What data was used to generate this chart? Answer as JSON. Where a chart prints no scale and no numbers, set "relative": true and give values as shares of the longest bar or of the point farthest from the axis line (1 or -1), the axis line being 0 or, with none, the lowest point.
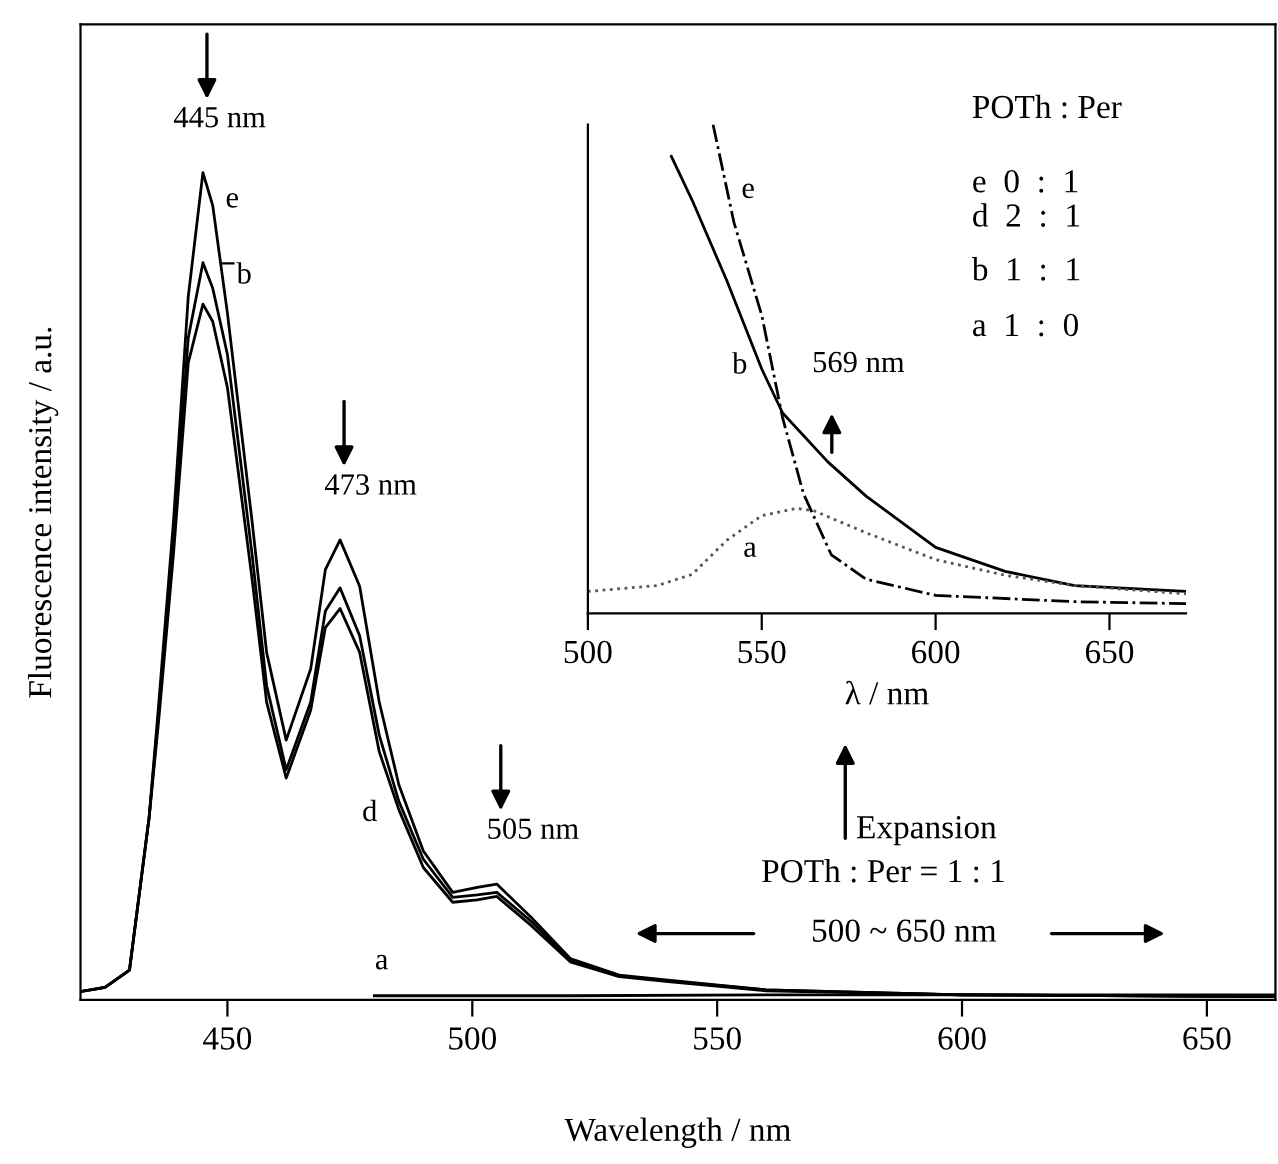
{
  "chart_data": [
    {
      "type": "line",
      "xlabel": "Wavelength / nm",
      "ylabel": "Fluorescence intensity / a.u.",
      "xlim": [
        420,
        664
      ],
      "xticks": [
        450,
        500,
        550,
        600,
        650
      ],
      "tick_labels": "x",
      "relative": true,
      "series": [
        {
          "name": "e",
          "color": "#000000",
          "line_style": "solid",
          "x": [
            420,
            425,
            430,
            434,
            436,
            439,
            442,
            445,
            447,
            450,
            455,
            458,
            462,
            467,
            470,
            473,
            477,
            481,
            485,
            490,
            496,
            501,
            505,
            512,
            520,
            530,
            540,
            560,
            600,
            664
          ],
          "values": [
            0.01,
            0.015,
            0.036,
            0.22,
            0.36,
            0.58,
            0.85,
            1.0,
            0.96,
            0.83,
            0.58,
            0.42,
            0.314,
            0.4,
            0.52,
            0.556,
            0.5,
            0.36,
            0.26,
            0.18,
            0.13,
            0.136,
            0.14,
            0.1,
            0.05,
            0.03,
            0.024,
            0.012,
            0.006,
            0.004
          ]
        },
        {
          "name": "b",
          "color": "#000000",
          "line_style": "solid",
          "x": [
            420,
            425,
            430,
            434,
            436,
            439,
            442,
            445,
            447,
            450,
            455,
            458,
            462,
            467,
            470,
            473,
            477,
            481,
            485,
            490,
            496,
            501,
            505,
            512,
            520,
            530,
            540,
            560,
            600,
            664
          ],
          "values": [
            0.01,
            0.015,
            0.036,
            0.22,
            0.35,
            0.56,
            0.8,
            0.891,
            0.86,
            0.78,
            0.54,
            0.38,
            0.278,
            0.36,
            0.47,
            0.498,
            0.44,
            0.32,
            0.24,
            0.17,
            0.124,
            0.127,
            0.13,
            0.095,
            0.048,
            0.029,
            0.023,
            0.012,
            0.006,
            0.004
          ]
        },
        {
          "name": "d",
          "color": "#000000",
          "line_style": "solid",
          "x": [
            420,
            425,
            430,
            434,
            436,
            439,
            442,
            445,
            447,
            450,
            455,
            458,
            462,
            467,
            470,
            473,
            477,
            481,
            485,
            490,
            496,
            501,
            505,
            512,
            520,
            530,
            540,
            560,
            600,
            664
          ],
          "values": [
            0.01,
            0.015,
            0.036,
            0.22,
            0.34,
            0.54,
            0.77,
            0.841,
            0.82,
            0.74,
            0.51,
            0.36,
            0.268,
            0.35,
            0.45,
            0.473,
            0.42,
            0.3,
            0.23,
            0.16,
            0.118,
            0.121,
            0.125,
            0.09,
            0.046,
            0.028,
            0.022,
            0.011,
            0.006,
            0.004
          ]
        },
        {
          "name": "a",
          "color": "#000000",
          "line_style": "solid",
          "x": [
            480,
            520,
            560,
            600,
            664
          ],
          "values": [
            0.005,
            0.005,
            0.006,
            0.006,
            0.006
          ]
        }
      ],
      "annotations": [
        {
          "text": "445 nm",
          "x": 445,
          "y": 1.0
        },
        {
          "text": "473 nm",
          "x": 473,
          "y": 0.556
        },
        {
          "text": "505 nm",
          "x": 505,
          "y": 0.14
        },
        "Expansion",
        "POTh : Per = 1 : 1",
        "500 ~ 650 nm"
      ]
    },
    {
      "type": "line",
      "xlabel": "λ / nm",
      "xlim": [
        500,
        672
      ],
      "xticks": [
        500,
        550,
        600,
        650
      ],
      "tick_labels": "x",
      "relative": true,
      "series": [
        {
          "name": "e",
          "color": "#000000",
          "line_style": "dashed",
          "x": [
            536,
            542,
            550,
            556,
            562,
            570,
            580,
            600,
            640,
            672
          ],
          "values": [
            1.0,
            0.8,
            0.61,
            0.4,
            0.245,
            0.12,
            0.07,
            0.037,
            0.024,
            0.02
          ]
        },
        {
          "name": "b",
          "color": "#000000",
          "line_style": "solid",
          "x": [
            524,
            530,
            540,
            550,
            556,
            569,
            580,
            600,
            620,
            640,
            672
          ],
          "values": [
            0.935,
            0.845,
            0.68,
            0.5,
            0.41,
            0.31,
            0.24,
            0.135,
            0.086,
            0.057,
            0.045
          ]
        },
        {
          "name": "a",
          "color": "#555555",
          "line_style": "dotted",
          "x": [
            500,
            520,
            530,
            540,
            550,
            560,
            565,
            580,
            600,
            620,
            640,
            672
          ],
          "values": [
            0.045,
            0.057,
            0.08,
            0.15,
            0.2,
            0.215,
            0.21,
            0.165,
            0.11,
            0.078,
            0.057,
            0.04
          ]
        }
      ],
      "annotations": [
        {
          "text": "569 nm",
          "x": 569,
          "y": 0.31
        },
        "POTh : Per",
        "e  0  :  1",
        "d  2  :  1",
        "b  1  :  1",
        "a  1  :  0"
      ]
    }
  ]
}
